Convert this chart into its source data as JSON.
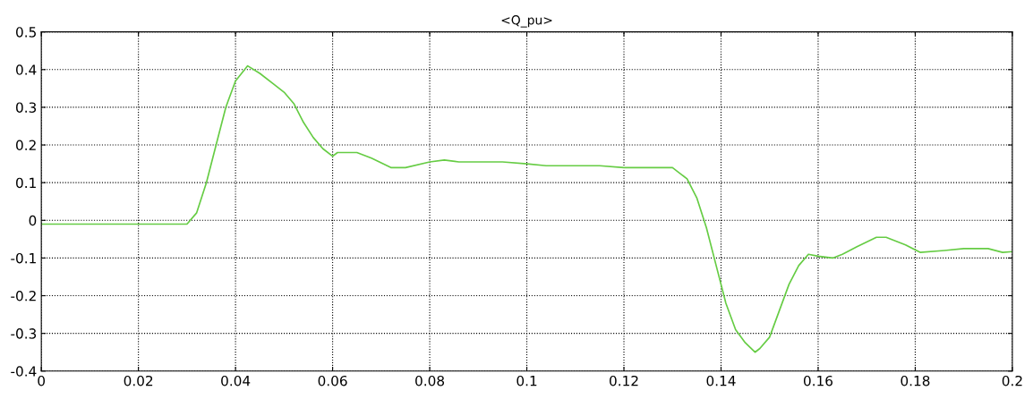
{
  "chart_data": {
    "type": "line",
    "title": "<Q_pu>",
    "x": [
      0,
      0.03,
      0.032,
      0.034,
      0.036,
      0.038,
      0.04,
      0.0425,
      0.045,
      0.048,
      0.05,
      0.052,
      0.054,
      0.056,
      0.058,
      0.06,
      0.061,
      0.065,
      0.068,
      0.072,
      0.075,
      0.08,
      0.083,
      0.086,
      0.095,
      0.1,
      0.104,
      0.115,
      0.12,
      0.13,
      0.133,
      0.135,
      0.137,
      0.139,
      0.141,
      0.143,
      0.145,
      0.147,
      0.148,
      0.15,
      0.152,
      0.154,
      0.156,
      0.158,
      0.16,
      0.163,
      0.165,
      0.168,
      0.172,
      0.174,
      0.178,
      0.181,
      0.186,
      0.19,
      0.195,
      0.198,
      0.2
    ],
    "series": [
      {
        "color": "#66cc44",
        "values": [
          -0.01,
          -0.01,
          0.02,
          0.1,
          0.2,
          0.3,
          0.37,
          0.41,
          0.39,
          0.36,
          0.34,
          0.31,
          0.26,
          0.22,
          0.19,
          0.17,
          0.18,
          0.18,
          0.165,
          0.14,
          0.14,
          0.155,
          0.16,
          0.155,
          0.155,
          0.15,
          0.145,
          0.145,
          0.14,
          0.14,
          0.11,
          0.06,
          -0.02,
          -0.12,
          -0.22,
          -0.29,
          -0.325,
          -0.35,
          -0.34,
          -0.31,
          -0.24,
          -0.17,
          -0.12,
          -0.09,
          -0.095,
          -0.1,
          -0.09,
          -0.07,
          -0.045,
          -0.045,
          -0.065,
          -0.085,
          -0.08,
          -0.075,
          -0.075,
          -0.085,
          -0.083
        ]
      }
    ],
    "xlim": [
      0,
      0.2
    ],
    "ylim": [
      -0.4,
      0.5
    ],
    "xticks": [
      0,
      0.02,
      0.04,
      0.06,
      0.08,
      0.1,
      0.12,
      0.14,
      0.16,
      0.18,
      0.2
    ],
    "yticks": [
      -0.4,
      -0.3,
      -0.2,
      -0.1,
      0,
      0.1,
      0.2,
      0.3,
      0.4,
      0.5
    ],
    "grid": true,
    "marker": "none",
    "line_style": "solid"
  }
}
